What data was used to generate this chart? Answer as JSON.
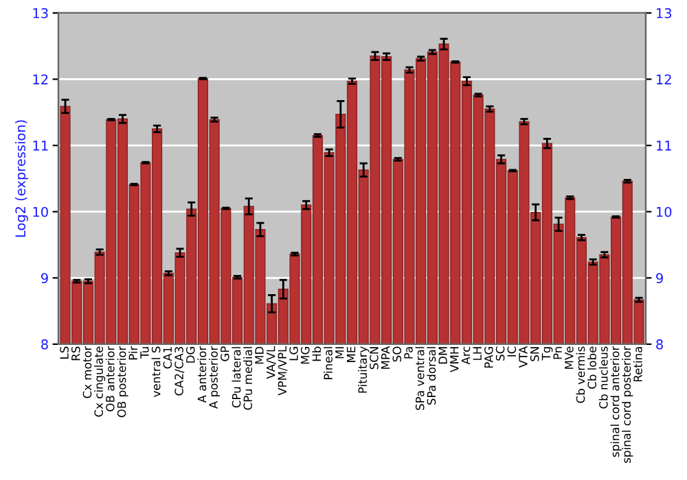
{
  "chart_data": {
    "type": "bar",
    "ylabel": "Log2 (expression)",
    "categories": [
      "LS",
      "RS",
      "Cx motor",
      "Cx cingulate",
      "OB anterior",
      "OB posterior",
      "Pir",
      "Tu",
      "ventral S",
      "CA1",
      "CA2/CA3",
      "DG",
      "A anterior",
      "A posterior",
      "GP",
      "CPu lateral",
      "CPu medial",
      "MD",
      "VA/VL",
      "VPM/VPL",
      "LG",
      "MG",
      "Hb",
      "Pineal",
      "MI",
      "ME",
      "Pituitary",
      "SCN",
      "MPA",
      "SO",
      "Pa",
      "SPa ventral",
      "SPa dorsal",
      "DM",
      "VMH",
      "Arc",
      "LH",
      "PAG",
      "SC",
      "IC",
      "VTA",
      "SN",
      "Tg",
      "Pn",
      "MVe",
      "Cb vermis",
      "Cb lobe",
      "Cb nucleus",
      "spinal cord anterior",
      "spinal cord posterior",
      "Retina"
    ],
    "values": [
      11.59,
      8.95,
      8.95,
      9.39,
      11.39,
      11.4,
      10.41,
      10.74,
      11.25,
      9.07,
      9.38,
      10.04,
      12.01,
      11.39,
      10.05,
      9.01,
      10.08,
      9.73,
      8.61,
      8.83,
      9.36,
      10.1,
      11.15,
      10.89,
      11.47,
      11.97,
      10.63,
      12.35,
      12.34,
      10.79,
      12.14,
      12.31,
      12.41,
      12.53,
      12.26,
      11.97,
      11.76,
      11.55,
      10.79,
      10.62,
      11.36,
      9.99,
      11.03,
      9.81,
      10.21,
      9.61,
      9.24,
      9.35,
      9.92,
      10.46,
      8.67
    ],
    "errors": [
      0.1,
      0.02,
      0.03,
      0.04,
      0.01,
      0.06,
      0.01,
      0.01,
      0.05,
      0.03,
      0.06,
      0.1,
      0.01,
      0.03,
      0.01,
      0.02,
      0.12,
      0.1,
      0.13,
      0.14,
      0.02,
      0.06,
      0.02,
      0.05,
      0.2,
      0.04,
      0.1,
      0.06,
      0.05,
      0.02,
      0.04,
      0.03,
      0.03,
      0.08,
      0.01,
      0.06,
      0.02,
      0.04,
      0.06,
      0.01,
      0.04,
      0.12,
      0.07,
      0.1,
      0.02,
      0.04,
      0.04,
      0.04,
      0.01,
      0.02,
      0.03
    ],
    "color": "#b83232",
    "ylim": [
      8,
      13
    ],
    "yticks": [
      8,
      9,
      10,
      11,
      12,
      13
    ],
    "y2lim": [
      8,
      13
    ],
    "y2ticks": [
      8,
      9,
      10,
      11,
      12,
      13
    ],
    "grid": "y",
    "legend": false
  }
}
